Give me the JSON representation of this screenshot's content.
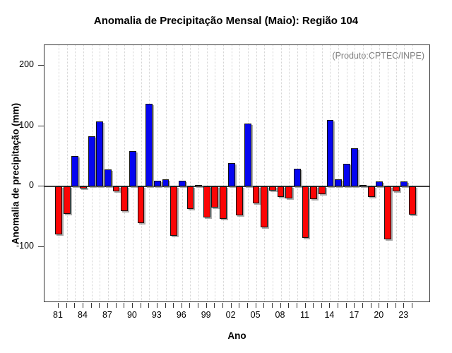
{
  "title": "Anomalia de Precipitação Mensal (Maio): Região 104",
  "annotation": "(Produto:CPTEC/INPE)",
  "colors": {
    "positive_bar": "#0505f0",
    "negative_bar": "#fb0505",
    "bar_border": "#141414",
    "bar_shadow": "#828282",
    "gridline": "#d4d4d4",
    "zero_line": "#3d3d3d",
    "annotation_text": "#808080",
    "axis_box": "#333333"
  },
  "chart_data": {
    "type": "bar",
    "title": "Anomalia de Precipitação Mensal (Maio): Região 104",
    "xlabel": "Ano",
    "ylabel": "Anomalia de precipitação (mm)",
    "annotation": "(Produto:CPTEC/INPE)",
    "grid": "vertical-dotted-per-year",
    "legend": "none",
    "color_rule": "blue if value >= 0, red if value < 0",
    "years": [
      1981,
      1982,
      1983,
      1984,
      1985,
      1986,
      1987,
      1988,
      1989,
      1990,
      1991,
      1992,
      1993,
      1994,
      1995,
      1996,
      1997,
      1998,
      1999,
      2000,
      2001,
      2002,
      2003,
      2004,
      2005,
      2006,
      2007,
      2008,
      2009,
      2010,
      2011,
      2012,
      2013,
      2014,
      2015,
      2016,
      2017,
      2018,
      2019,
      2020,
      2021,
      2022,
      2023,
      2024
    ],
    "values": [
      -80,
      -45,
      50,
      -3,
      83,
      108,
      28,
      -8,
      -41,
      59,
      -61,
      137,
      10,
      12,
      -82,
      9,
      -37,
      2,
      -51,
      -35,
      -54,
      39,
      -48,
      104,
      -28,
      -68,
      -7,
      -18,
      -20,
      29,
      -85,
      -21,
      -13,
      110,
      12,
      38,
      63,
      2,
      -18,
      8,
      -88,
      -8,
      8,
      -47
    ],
    "x_tick_years": [
      1981,
      1984,
      1987,
      1990,
      1993,
      1996,
      1999,
      2002,
      2005,
      2008,
      2011,
      2014,
      2017,
      2020,
      2023
    ],
    "x_tick_labels": [
      "81",
      "84",
      "87",
      "90",
      "93",
      "96",
      "99",
      "02",
      "05",
      "08",
      "11",
      "14",
      "17",
      "20",
      "23"
    ],
    "y_ticks": [
      -100,
      0,
      100,
      200
    ],
    "y_tick_labels": [
      "-100",
      "0",
      "100",
      "200"
    ],
    "x_domain": [
      1979.28,
      2026.24
    ],
    "y_domain": [
      -193,
      234
    ]
  }
}
